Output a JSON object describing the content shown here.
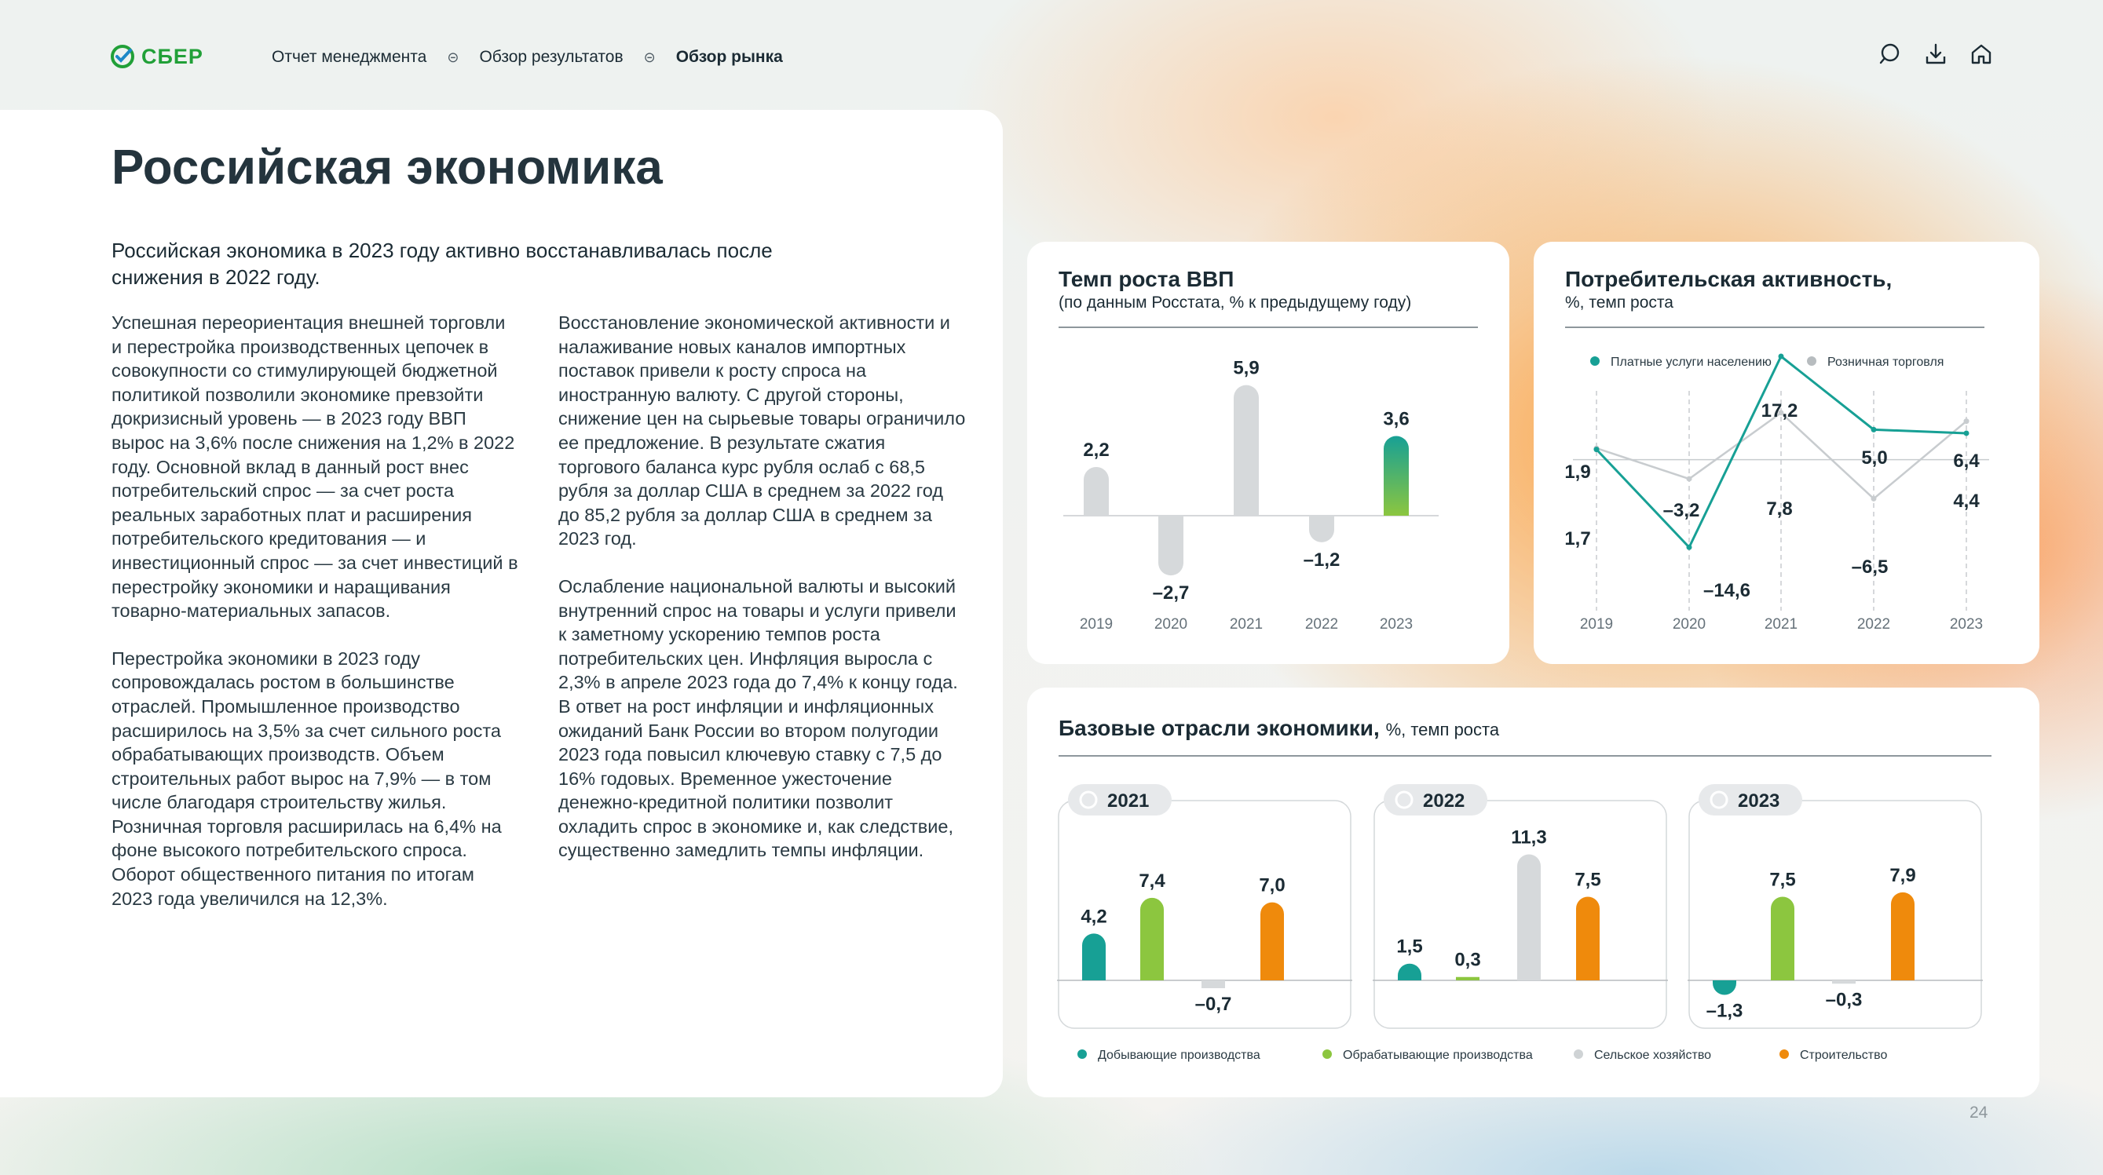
{
  "brand": {
    "name": "СБЕР",
    "color": "#21a038"
  },
  "nav": {
    "items": [
      "Отчет менеджмента",
      "Обзор результатов",
      "Обзор рынка"
    ],
    "active": "Обзор рынка"
  },
  "toolbar": {
    "icons": [
      "search-icon",
      "download-icon",
      "home-icon"
    ]
  },
  "page": {
    "title": "Российская экономика",
    "lead": "Российская экономика в 2023 году активно восстанавливалась после снижения в 2022 году.",
    "col1": [
      "Успешная переориентация внешней торговли и перестройка производственных цепочек в совокупности со стимулирующей бюджетной политикой позволили экономике превзойти докризисный уровень — в 2023 году ВВП вырос на 3,6% после снижения на 1,2% в 2022 году. Основной вклад в данный рост внес потребительский спрос — за счет роста реальных заработных плат и расширения потребительского кредитования — и инвестиционный спрос — за счет инвестиций в перестройку экономики и наращивания товарно-материальных запасов.",
      "Перестройка экономики в 2023 году сопровождалась ростом в большинстве отраслей. Промышленное производство расширилось на 3,5% за счет сильного роста обрабатывающих производств. Объем строительных работ вырос на 7,9% — в том числе благодаря строительству жилья. Розничная торговля расширилась на 6,4% на фоне высокого потребительского спроса. Оборот общественного питания по итогам 2023 года увеличился на 12,3%."
    ],
    "col2": [
      "Восстановление экономической активности и налаживание новых каналов импортных поставок привели к росту спроса на иностранную валюту. С другой стороны, снижение цен на сырьевые товары ограничило ее предложение. В результате сжатия торгового баланса курс рубля ослаб с 68,5 рубля за доллар США в среднем за 2022 год до 85,2 рубля за доллар США в среднем за 2023 год.",
      "Ослабление национальной валюты и высокий внутренний спрос на товары и услуги привели к заметному ускорению темпов роста потребительских цен. Инфляция выросла с 2,3% в апреле 2023 года до 7,4% к концу года. В ответ на рост инфляции и инфляционных ожиданий Банк России во втором полугодии 2023 года повысил ключевую ставку с 7,5 до 16% годовых. Временное ужесточение денежно-кредитной политики позволит охладить спрос в экономике и, как следствие, существенно замедлить темпы инфляции."
    ],
    "page_number": "24"
  },
  "chart_data": [
    {
      "type": "bar",
      "title": "Темп роста ВВП",
      "subtitle": "(по данным Росстата, % к предыдущему году)",
      "categories": [
        "2019",
        "2020",
        "2021",
        "2022",
        "2023"
      ],
      "values": [
        2.2,
        -2.7,
        5.9,
        -1.2,
        3.6
      ],
      "labels": [
        "2,2",
        "–2,7",
        "5,9",
        "–1,2",
        "3,6"
      ],
      "highlight": "2023",
      "colors": {
        "default": "#d6d9db",
        "highlight_top": "#17a095",
        "highlight_bottom": "#8cc63f"
      }
    },
    {
      "type": "line",
      "title": "Потребительская активность,",
      "subtitle": "%, темп роста",
      "categories": [
        "2019",
        "2020",
        "2021",
        "2022",
        "2023"
      ],
      "series": [
        {
          "name": "Платные услуги населению",
          "color": "#17a095",
          "values": [
            1.7,
            -14.6,
            17.2,
            5.0,
            4.4
          ],
          "labels": [
            "1,7",
            "–14,6",
            "17,2",
            "5,0",
            "4,4"
          ]
        },
        {
          "name": "Розничная торговля",
          "color": "#c8cccf",
          "values": [
            1.9,
            -3.2,
            7.8,
            -6.5,
            6.4
          ],
          "labels": [
            "1,9",
            "–3,2",
            "7,8",
            "–6,5",
            "6,4"
          ]
        }
      ],
      "ylim": [
        -16,
        18
      ],
      "grid": "vertical dashed"
    },
    {
      "type": "bar",
      "title": "Базовые отрасли экономики,",
      "subtitle": "%, темп роста",
      "groups": [
        "2021",
        "2022",
        "2023"
      ],
      "series": [
        {
          "name": "Добывающие производства",
          "color": "#17a095",
          "values": [
            4.2,
            1.5,
            -1.3
          ],
          "labels": [
            "4,2",
            "1,5",
            "–1,3"
          ]
        },
        {
          "name": "Обрабатывающие производства",
          "color": "#8cc63f",
          "values": [
            7.4,
            0.3,
            7.5
          ],
          "labels": [
            "7,4",
            "0,3",
            "7,5"
          ]
        },
        {
          "name": "Сельское хозяйство",
          "color": "#d6d9db",
          "values": [
            -0.7,
            11.3,
            -0.3
          ],
          "labels": [
            "–0,7",
            "11,3",
            "–0,3"
          ]
        },
        {
          "name": "Строительство",
          "color": "#ef8a0c",
          "values": [
            7.0,
            7.5,
            7.9
          ],
          "labels": [
            "7,0",
            "7,5",
            "7,9"
          ]
        }
      ],
      "legend": "bottom"
    }
  ]
}
